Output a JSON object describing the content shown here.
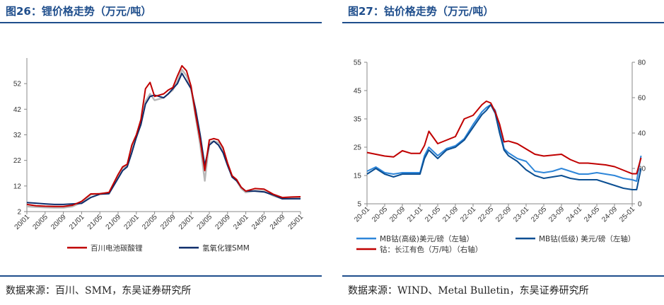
{
  "left": {
    "title": "图26：锂价格走势（万元/吨）",
    "source": "数据来源：百川、SMM，东吴证券研究所",
    "chart_data": {
      "type": "line",
      "title": "锂价格走势（万元/吨）",
      "x_ticks": [
        "20/01",
        "20/05",
        "20/09",
        "21/01",
        "21/05",
        "21/09",
        "22/01",
        "22/05",
        "22/09",
        "23/01",
        "23/05",
        "23/09",
        "24/01",
        "24/05",
        "24/09",
        "25/01"
      ],
      "ylim": [
        2,
        62
      ],
      "y_ticks": [
        2,
        12,
        22,
        32,
        42,
        52
      ],
      "grid": false,
      "legend_position": "bottom",
      "series": [
        {
          "name": "百川电池碳酸锂",
          "color": "#c00000",
          "x": [
            "20/01",
            "20/03",
            "20/05",
            "20/07",
            "20/09",
            "20/11",
            "21/01",
            "21/03",
            "21/05",
            "21/07",
            "21/09",
            "21/10",
            "21/11",
            "21/12",
            "22/01",
            "22/02",
            "22/03",
            "22/04",
            "22/05",
            "22/06",
            "22/07",
            "22/08",
            "22/09",
            "22/10",
            "22/11",
            "22/12",
            "23/01",
            "23/02",
            "23/03",
            "23/04",
            "23/05",
            "23/06",
            "23/07",
            "23/08",
            "23/09",
            "23/10",
            "23/11",
            "23/12",
            "24/01",
            "24/03",
            "24/05",
            "24/07",
            "24/09",
            "24/11",
            "25/01"
          ],
          "values": [
            4.8,
            4.3,
            4.1,
            4.0,
            4.0,
            4.5,
            6.0,
            8.9,
            9.0,
            9.5,
            16.5,
            19.5,
            20.5,
            28.0,
            32.0,
            38.0,
            50.0,
            52.5,
            47.0,
            47.5,
            48.0,
            49.5,
            50.5,
            55.0,
            59.0,
            57.0,
            51.0,
            40.0,
            30.0,
            18.0,
            30.0,
            30.5,
            30.0,
            27.0,
            21.0,
            16.0,
            14.5,
            11.5,
            10.0,
            11.0,
            10.8,
            8.8,
            7.5,
            7.7,
            7.8
          ]
        },
        {
          "name": "氢氧化锂SMM",
          "color": "#0e2d6b",
          "x": [
            "20/01",
            "20/03",
            "20/05",
            "20/07",
            "20/09",
            "20/11",
            "21/01",
            "21/03",
            "21/05",
            "21/07",
            "21/09",
            "21/10",
            "21/11",
            "21/12",
            "22/01",
            "22/02",
            "22/03",
            "22/04",
            "22/05",
            "22/06",
            "22/07",
            "22/08",
            "22/09",
            "22/10",
            "22/11",
            "22/12",
            "23/01",
            "23/02",
            "23/03",
            "23/04",
            "23/05",
            "23/06",
            "23/07",
            "23/08",
            "23/09",
            "23/10",
            "23/11",
            "23/12",
            "24/01",
            "24/03",
            "24/05",
            "24/07",
            "24/09",
            "24/11",
            "25/01"
          ],
          "values": [
            5.5,
            5.3,
            5.0,
            4.8,
            4.8,
            5.0,
            5.2,
            7.5,
            8.8,
            9.0,
            15.0,
            18.0,
            19.5,
            25.0,
            31.0,
            36.0,
            44.0,
            47.0,
            47.5,
            47.0,
            46.5,
            48.0,
            50.0,
            52.0,
            56.0,
            53.0,
            50.0,
            42.0,
            32.0,
            20.0,
            28.0,
            29.5,
            28.0,
            25.0,
            20.0,
            15.5,
            14.0,
            11.5,
            10.0,
            10.0,
            9.7,
            8.5,
            7.0,
            7.0,
            7.0
          ]
        },
        {
          "name": "",
          "color": "#b8b8b8",
          "x": [
            "20/01",
            "20/03",
            "20/05",
            "20/07",
            "20/09",
            "20/11",
            "21/01",
            "21/03",
            "21/05",
            "21/07",
            "21/09",
            "21/10",
            "21/11",
            "21/12",
            "22/01",
            "22/02",
            "22/03",
            "22/04",
            "22/05",
            "22/06",
            "22/07",
            "22/08",
            "22/09",
            "22/10",
            "22/11",
            "22/12",
            "23/01",
            "23/02",
            "23/03",
            "23/04",
            "23/05",
            "23/06",
            "23/07",
            "23/08",
            "23/09",
            "23/10",
            "23/11",
            "23/12",
            "24/01",
            "24/03",
            "24/05",
            "24/07",
            "24/09",
            "24/11",
            "25/01"
          ],
          "values": [
            4.0,
            3.8,
            3.6,
            3.5,
            3.5,
            4.0,
            5.5,
            8.6,
            9.0,
            9.2,
            16.0,
            19.0,
            20.0,
            27.0,
            31.0,
            37.0,
            45.0,
            48.0,
            45.5,
            46.0,
            46.5,
            48.0,
            49.5,
            53.0,
            57.5,
            55.0,
            50.0,
            39.0,
            28.0,
            14.0,
            29.0,
            29.5,
            29.0,
            26.0,
            20.5,
            15.5,
            14.0,
            11.0,
            9.5,
            10.2,
            10.0,
            8.2,
            7.0,
            7.2,
            7.3
          ]
        }
      ]
    }
  },
  "right": {
    "title": "图27：钴价格走势（万元/吨）",
    "source": "数据来源：WIND、Metal Bulletin，东吴证券研究所",
    "chart_data": {
      "type": "line",
      "title": "钴价格走势（万元/吨）",
      "x_ticks": [
        "20-01",
        "20-05",
        "20-09",
        "21-01",
        "21-05",
        "21-09",
        "22-01",
        "22-05",
        "22-09",
        "23-01",
        "23-05",
        "23-09",
        "24-01",
        "24-05",
        "24-09",
        "25-01"
      ],
      "y_left_ticks": [
        5,
        15,
        25,
        35,
        45,
        55
      ],
      "y_left_lim": [
        5,
        55
      ],
      "y_right_ticks": [
        0,
        20,
        40,
        60,
        80
      ],
      "y_right_lim": [
        0,
        80
      ],
      "grid": false,
      "legend_position": "bottom",
      "series": [
        {
          "name": "MB钴(高级)美元/磅（左轴）",
          "axis": "left",
          "color": "#2e86d9",
          "x": [
            "20-01",
            "20-03",
            "20-05",
            "20-07",
            "20-09",
            "20-11",
            "21-01",
            "21-02",
            "21-03",
            "21-05",
            "21-07",
            "21-09",
            "21-11",
            "22-01",
            "22-03",
            "22-04",
            "22-05",
            "22-06",
            "22-07",
            "22-08",
            "22-09",
            "22-11",
            "23-01",
            "23-03",
            "23-05",
            "23-07",
            "23-09",
            "23-11",
            "24-01",
            "24-03",
            "24-05",
            "24-07",
            "24-09",
            "24-11",
            "25-01",
            "25-02",
            "25-03"
          ],
          "values": [
            16.5,
            18.0,
            16.0,
            15.5,
            16.0,
            16.0,
            16.0,
            22.0,
            25.0,
            22.0,
            24.5,
            25.5,
            28.0,
            33.0,
            37.5,
            39.0,
            40.0,
            38.0,
            32.0,
            24.5,
            23.0,
            21.0,
            20.0,
            16.5,
            16.0,
            16.5,
            17.5,
            16.5,
            15.5,
            15.5,
            16.0,
            15.5,
            15.0,
            14.0,
            13.5,
            13.0,
            22.0
          ]
        },
        {
          "name": "MB钴(低级) 美元/磅（左轴）",
          "axis": "left",
          "color": "#0b4f93",
          "x": [
            "20-01",
            "20-03",
            "20-05",
            "20-07",
            "20-09",
            "20-11",
            "21-01",
            "21-02",
            "21-03",
            "21-05",
            "21-07",
            "21-09",
            "21-11",
            "22-01",
            "22-03",
            "22-04",
            "22-05",
            "22-06",
            "22-07",
            "22-08",
            "22-09",
            "22-11",
            "23-01",
            "23-03",
            "23-05",
            "23-07",
            "23-09",
            "23-11",
            "24-01",
            "24-03",
            "24-05",
            "24-07",
            "24-09",
            "24-11",
            "25-01",
            "25-02",
            "25-03"
          ],
          "values": [
            15.5,
            17.5,
            15.5,
            14.5,
            15.5,
            15.5,
            15.5,
            21.0,
            24.0,
            21.0,
            24.0,
            25.0,
            27.5,
            32.0,
            36.5,
            38.0,
            40.0,
            37.0,
            30.0,
            24.0,
            22.0,
            20.0,
            17.0,
            15.0,
            14.0,
            14.5,
            15.0,
            14.0,
            13.5,
            13.5,
            13.5,
            12.5,
            11.5,
            10.5,
            10.0,
            10.0,
            17.5
          ]
        },
        {
          "name": "钴：长江有色（万/吨）（右轴）",
          "axis": "right",
          "color": "#c00000",
          "x": [
            "20-01",
            "20-03",
            "20-05",
            "20-07",
            "20-09",
            "20-11",
            "21-01",
            "21-02",
            "21-03",
            "21-05",
            "21-07",
            "21-09",
            "21-11",
            "22-01",
            "22-03",
            "22-04",
            "22-05",
            "22-06",
            "22-07",
            "22-08",
            "22-09",
            "22-11",
            "23-01",
            "23-03",
            "23-05",
            "23-07",
            "23-09",
            "23-11",
            "24-01",
            "24-03",
            "24-05",
            "24-07",
            "24-09",
            "24-11",
            "25-01",
            "25-02",
            "25-03"
          ],
          "values": [
            29.0,
            28.0,
            27.0,
            26.5,
            30.0,
            28.5,
            28.5,
            33.0,
            41.0,
            34.0,
            36.0,
            38.0,
            48.0,
            50.0,
            56.0,
            58.0,
            57.0,
            52.0,
            45.0,
            35.0,
            35.5,
            34.0,
            31.0,
            28.0,
            27.0,
            27.5,
            28.0,
            25.0,
            23.0,
            23.0,
            22.5,
            22.0,
            21.0,
            19.0,
            17.0,
            17.0,
            26.0
          ]
        }
      ]
    }
  }
}
